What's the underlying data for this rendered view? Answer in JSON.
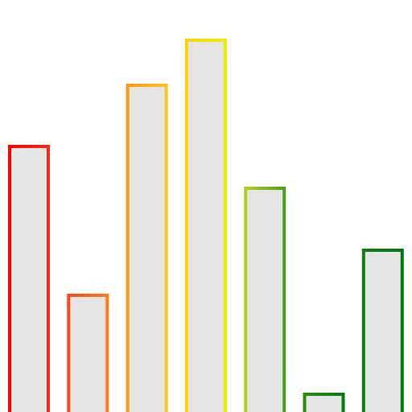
{
  "chart_data": {
    "type": "bar",
    "categories": [
      "",
      "",
      "",
      "",
      "",
      "",
      ""
    ],
    "values": [
      332,
      147,
      408,
      464,
      280,
      24,
      203
    ],
    "ylim": [
      0,
      466
    ],
    "grid": false,
    "legend": "none",
    "bar_fill": "#e5e5e5",
    "bar_colors": [
      [
        "#ff0000",
        "#f52a1a"
      ],
      [
        "#ff4b12",
        "#ff7a1c"
      ],
      [
        "#ff9a12",
        "#ffc21f"
      ],
      [
        "#ffd400",
        "#e8f000"
      ],
      [
        "#b4d11b",
        "#4ba01a"
      ],
      [
        "#2f8a14",
        "#0a7a12"
      ],
      [
        "#0f7f12",
        "#007a10"
      ]
    ]
  }
}
